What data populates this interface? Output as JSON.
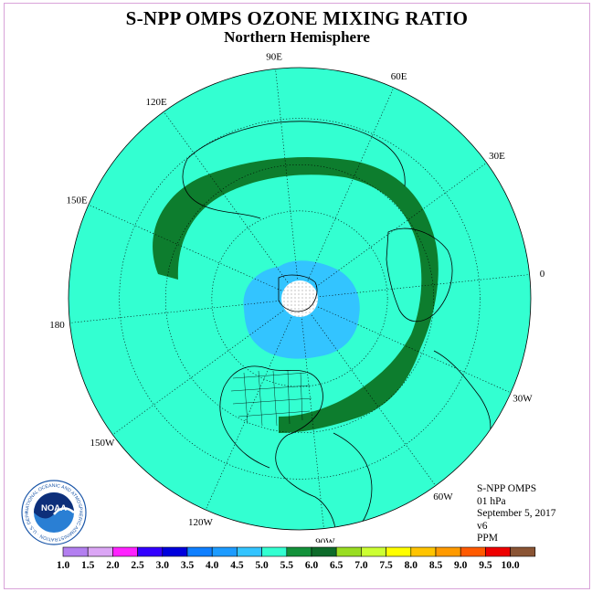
{
  "title": "S-NPP OMPS OZONE MIXING RATIO",
  "subtitle": "Northern Hemisphere",
  "longitude_labels": [
    {
      "text": "90E",
      "lon": 90
    },
    {
      "text": "60E",
      "lon": 60
    },
    {
      "text": "30E",
      "lon": 30
    },
    {
      "text": "0",
      "lon": 0
    },
    {
      "text": "30W",
      "lon": -30
    },
    {
      "text": "60W",
      "lon": -60
    },
    {
      "text": "90W",
      "lon": -90
    },
    {
      "text": "120W",
      "lon": -120
    },
    {
      "text": "150W",
      "lon": -150
    },
    {
      "text": "180",
      "lon": 180
    },
    {
      "text": "150E",
      "lon": 150
    },
    {
      "text": "120E",
      "lon": 120
    }
  ],
  "info": {
    "instrument": "S-NPP OMPS",
    "level": "01 hPa",
    "date": "September 5, 2017",
    "version": "v6",
    "units": "PPM"
  },
  "logo": {
    "text": "NOAA",
    "ring_text": "NATIONAL OCEANIC AND ATMOSPHERIC ADMINISTRATION · U.S. DEPARTMENT OF COMMERCE"
  },
  "colors": {
    "background_field": "#33ffd1",
    "inner_field": "#33c4ff",
    "band": "#0d7d2e",
    "pole_mask": "#ffffff",
    "frame_border": "#d9a3d9"
  },
  "legend": {
    "ticks": [
      "1.0",
      "1.5",
      "2.0",
      "2.5",
      "3.0",
      "3.5",
      "4.0",
      "4.5",
      "5.0",
      "5.5",
      "6.0",
      "6.5",
      "7.0",
      "7.5",
      "8.0",
      "8.5",
      "9.0",
      "9.5",
      "10.0"
    ],
    "colors": [
      "#b37ff0",
      "#dba6f5",
      "#ff22ff",
      "#3300ff",
      "#0000dd",
      "#0f7fff",
      "#1c9bff",
      "#33c4ff",
      "#33ffd1",
      "#13913a",
      "#0d6b2a",
      "#99dd22",
      "#ccff33",
      "#ffff00",
      "#ffc400",
      "#ff9a00",
      "#ff5a00",
      "#ee0000",
      "#8a5434"
    ]
  },
  "chart_data": {
    "type": "heatmap",
    "projection": "north polar stereographic",
    "title": "S-NPP OMPS OZONE MIXING RATIO",
    "subtitle": "Northern Hemisphere",
    "units": "PPM",
    "pressure_level": "01 hPa",
    "date": "September 5, 2017",
    "color_scale_min": 1.0,
    "color_scale_max": 10.0,
    "color_scale_step": 0.5,
    "regions": [
      {
        "description": "most of hemisphere",
        "range_ppm": [
          4.5,
          5.0
        ]
      },
      {
        "description": "polar cap around north pole",
        "range_ppm": [
          4.0,
          4.5
        ]
      },
      {
        "description": "mid-latitude band",
        "range_ppm": [
          5.0,
          6.0
        ]
      },
      {
        "description": "pole (no data)",
        "range_ppm": null
      }
    ]
  }
}
